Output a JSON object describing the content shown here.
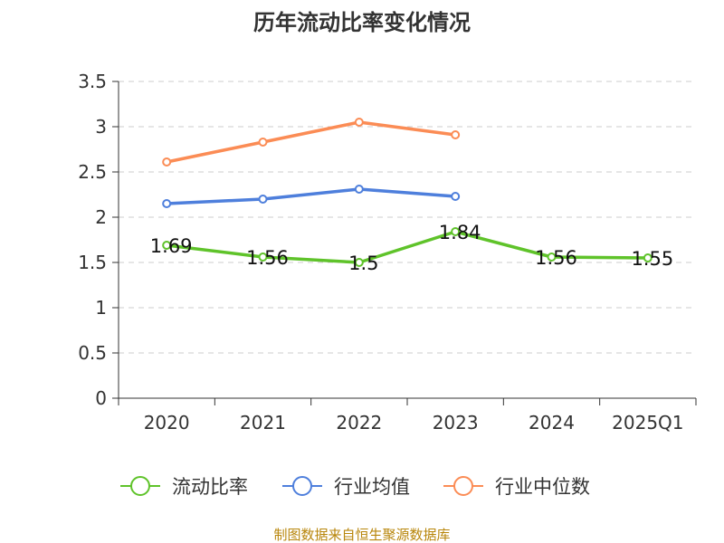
{
  "chart_data": {
    "type": "line",
    "title": "历年流动比率变化情况",
    "categories": [
      "2020",
      "2021",
      "2022",
      "2023",
      "2024",
      "2025Q1"
    ],
    "ylim": [
      0,
      3.5
    ],
    "yticks": [
      "0",
      "0.5",
      "1",
      "1.5",
      "2",
      "2.5",
      "3",
      "3.5"
    ],
    "grid": true,
    "legend_position": "bottom",
    "series": [
      {
        "name": "流动比率",
        "color": "#5fc32a",
        "values": [
          1.69,
          1.56,
          1.5,
          1.84,
          1.56,
          1.55
        ],
        "labels": [
          "1.69",
          "1.56",
          "1.5",
          "1.84",
          "1.56",
          "1.55"
        ]
      },
      {
        "name": "行业均值",
        "color": "#4e7fdc",
        "values": [
          2.15,
          2.2,
          2.31,
          2.23,
          null,
          null
        ]
      },
      {
        "name": "行业中位数",
        "color": "#fb8c55",
        "values": [
          2.61,
          2.83,
          3.05,
          2.91,
          null,
          null
        ]
      }
    ]
  },
  "source": "制图数据来自恒生聚源数据库"
}
